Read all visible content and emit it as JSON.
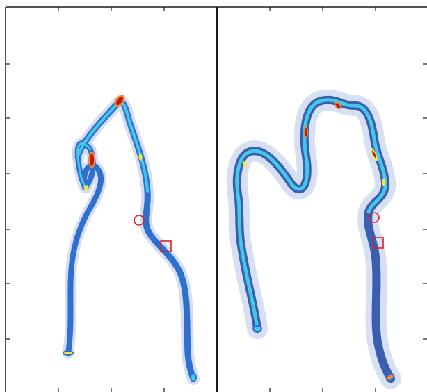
{
  "figure": {
    "panel_count": 2,
    "colormap": "jet",
    "colors": {
      "frame": "#1a1a1a",
      "halo": "#c9d4ee",
      "outer_blue": "#3b5fb0",
      "mid_blue": "#2e6fd0",
      "cyan": "#44c8e6",
      "yellow": "#f5e34a",
      "orange": "#f08a2a",
      "red": "#c01818",
      "marker": "#e02020"
    },
    "markers": [
      "circle",
      "square"
    ],
    "panels": [
      {
        "id": "left",
        "has_circle_marker": true,
        "has_square_marker": true
      },
      {
        "id": "right",
        "has_circle_marker": true,
        "has_square_marker": true
      }
    ]
  }
}
